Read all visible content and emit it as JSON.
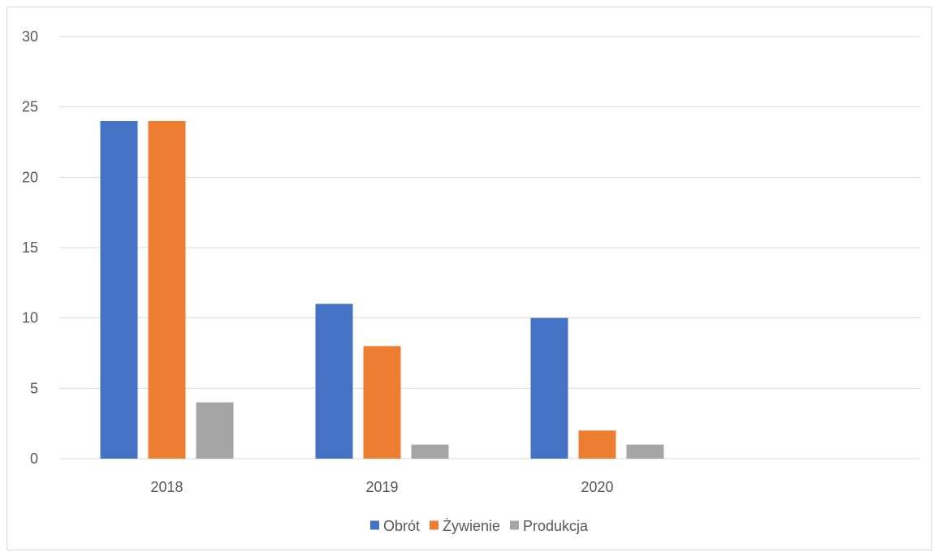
{
  "chart_data": {
    "type": "bar",
    "categories": [
      "2018",
      "2019",
      "2020",
      ""
    ],
    "series": [
      {
        "name": "Obrót",
        "color": "#4472C4",
        "values": [
          24,
          11,
          10,
          null
        ]
      },
      {
        "name": "Żywienie",
        "color": "#ED7D31",
        "values": [
          24,
          8,
          2,
          null
        ]
      },
      {
        "name": "Produkcja",
        "color": "#A5A5A5",
        "values": [
          4,
          1,
          1,
          null
        ]
      }
    ],
    "title": "",
    "xlabel": "",
    "ylabel": "",
    "ylim": [
      0,
      30
    ],
    "yticks": [
      0,
      5,
      10,
      15,
      20,
      25,
      30
    ],
    "grid": true,
    "legend_position": "bottom"
  }
}
